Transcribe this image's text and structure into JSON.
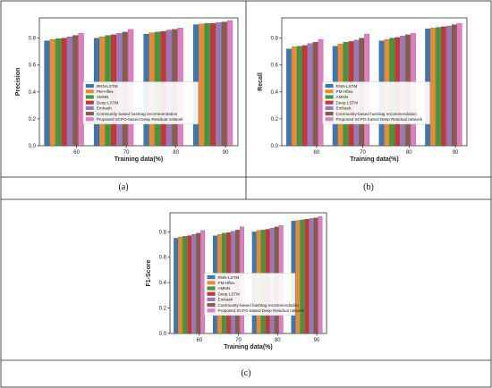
{
  "panel_labels": [
    "(a)",
    "(b)",
    "(c)"
  ],
  "colors": {
    "RNN-LSTM": "#3a78b4",
    "PM-Hflex": "#f0892a",
    "AMNN": "#3c9a3c",
    "Deep LSTM": "#cc3333",
    "Emhash": "#9a78be",
    "Community-based hashtag recommendation": "#8a5a4a",
    "Proposed SCPO-based Deep Residual network": "#e27cc4"
  },
  "chart_data": [
    {
      "type": "bar",
      "panel": "(a)",
      "categories": [
        "60",
        "70",
        "80",
        "90"
      ],
      "xlabel": "Training data(%)",
      "ylabel": "Precision",
      "ylim": [
        0,
        0.95
      ],
      "yticks": [
        "0.0",
        "0.2",
        "0.4",
        "0.6",
        "0.8"
      ],
      "grid": false,
      "legend_position": "center",
      "series": [
        {
          "name": "RNN-LSTM",
          "values": [
            0.78,
            0.8,
            0.83,
            0.9
          ]
        },
        {
          "name": "PM-Hflex",
          "values": [
            0.79,
            0.81,
            0.84,
            0.905
          ]
        },
        {
          "name": "AMNN",
          "values": [
            0.795,
            0.82,
            0.845,
            0.91
          ]
        },
        {
          "name": "Deep LSTM",
          "values": [
            0.8,
            0.825,
            0.85,
            0.91
          ]
        },
        {
          "name": "Emhash",
          "values": [
            0.81,
            0.835,
            0.86,
            0.915
          ]
        },
        {
          "name": "Community-based hashtag recommendation",
          "values": [
            0.82,
            0.845,
            0.865,
            0.92
          ]
        },
        {
          "name": "Proposed SCPO-based Deep Residual network",
          "values": [
            0.835,
            0.865,
            0.875,
            0.93
          ]
        }
      ]
    },
    {
      "type": "bar",
      "panel": "(b)",
      "categories": [
        "60",
        "70",
        "80",
        "90"
      ],
      "xlabel": "Training data(%)",
      "ylabel": "Recall",
      "ylim": [
        0,
        0.95
      ],
      "yticks": [
        "0.0",
        "0.2",
        "0.4",
        "0.6",
        "0.8"
      ],
      "grid": false,
      "legend_position": "center",
      "series": [
        {
          "name": "RNN-LSTM",
          "values": [
            0.72,
            0.74,
            0.78,
            0.87
          ]
        },
        {
          "name": "PM-Hflex",
          "values": [
            0.735,
            0.755,
            0.79,
            0.875
          ]
        },
        {
          "name": "AMNN",
          "values": [
            0.74,
            0.77,
            0.8,
            0.88
          ]
        },
        {
          "name": "Deep LSTM",
          "values": [
            0.745,
            0.775,
            0.805,
            0.885
          ]
        },
        {
          "name": "Emhash",
          "values": [
            0.76,
            0.785,
            0.815,
            0.89
          ]
        },
        {
          "name": "Community-based hashtag recommendation",
          "values": [
            0.77,
            0.8,
            0.825,
            0.9
          ]
        },
        {
          "name": "Proposed SCPO-based Deep Residual network",
          "values": [
            0.79,
            0.83,
            0.835,
            0.91
          ]
        }
      ]
    },
    {
      "type": "bar",
      "panel": "(c)",
      "categories": [
        "60",
        "70",
        "80",
        "90"
      ],
      "xlabel": "Training data(%)",
      "ylabel": "F1-Score",
      "ylim": [
        0,
        0.95
      ],
      "yticks": [
        "0.0",
        "0.2",
        "0.4",
        "0.6",
        "0.8"
      ],
      "grid": false,
      "legend_position": "center",
      "series": [
        {
          "name": "RNN-LSTM",
          "values": [
            0.75,
            0.77,
            0.8,
            0.885
          ]
        },
        {
          "name": "PM-Hflex",
          "values": [
            0.76,
            0.78,
            0.81,
            0.89
          ]
        },
        {
          "name": "AMNN",
          "values": [
            0.765,
            0.79,
            0.815,
            0.895
          ]
        },
        {
          "name": "Deep LSTM",
          "values": [
            0.77,
            0.795,
            0.82,
            0.9
          ]
        },
        {
          "name": "Emhash",
          "values": [
            0.78,
            0.805,
            0.83,
            0.905
          ]
        },
        {
          "name": "Community-based hashtag recommendation",
          "values": [
            0.79,
            0.815,
            0.84,
            0.91
          ]
        },
        {
          "name": "Proposed SCPO-based Deep Residual network",
          "values": [
            0.81,
            0.84,
            0.85,
            0.92
          ]
        }
      ]
    }
  ]
}
